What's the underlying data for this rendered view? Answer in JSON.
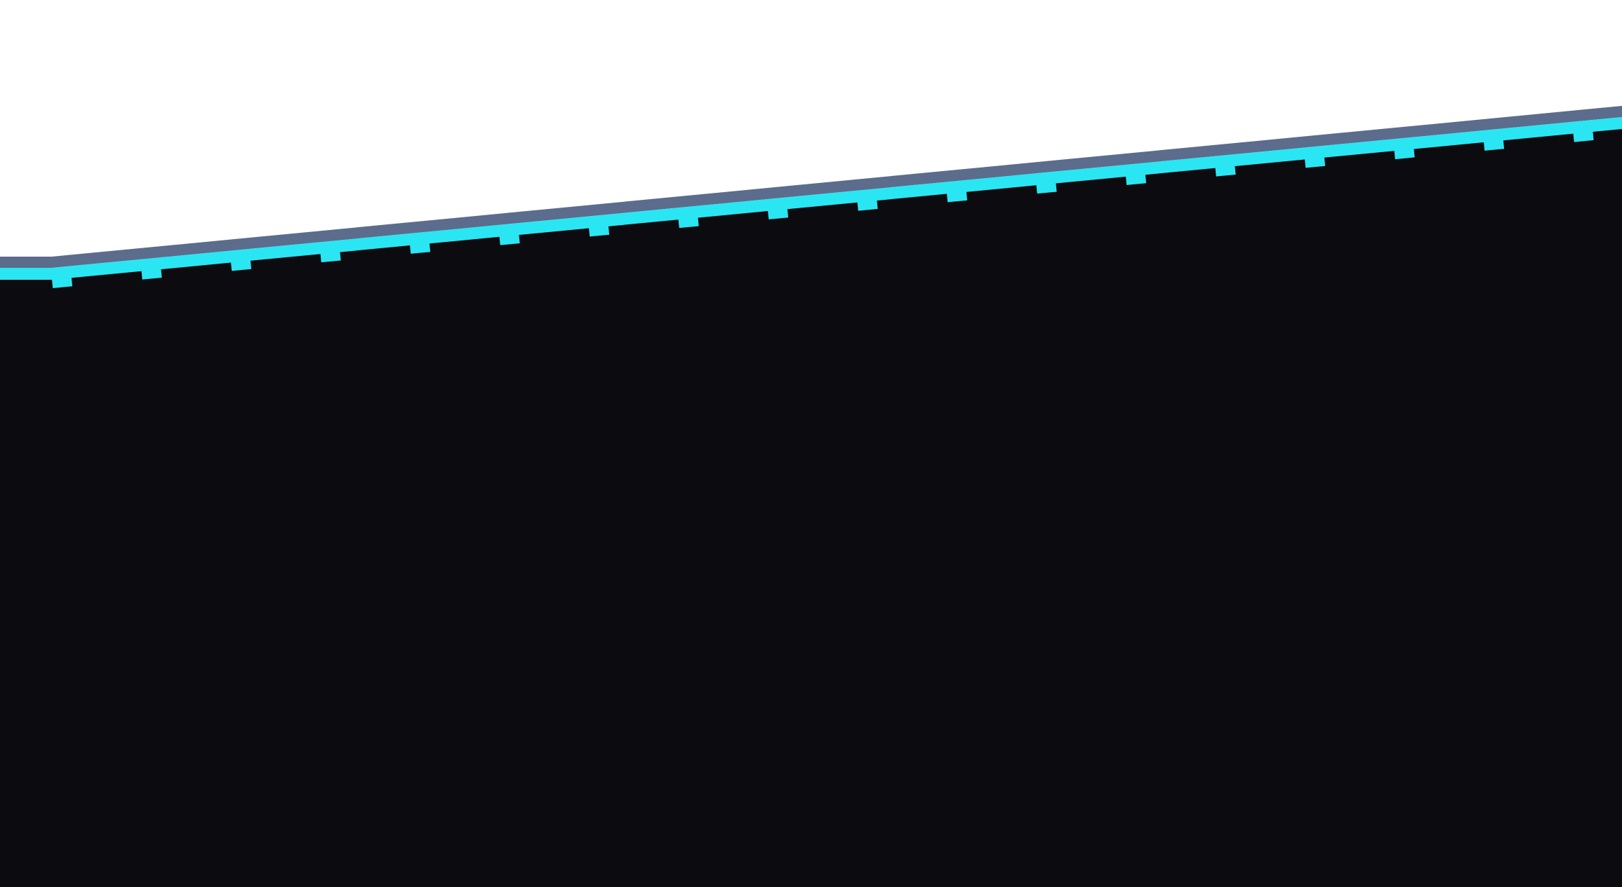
{
  "colors": {
    "sky": "#ffffff",
    "ground": "#0c0b0f",
    "edge_stripe": "#5c6c8c",
    "accent": "#2ae6f2"
  },
  "scene": {
    "elements": [
      "sky-area",
      "slope-edge-stripe",
      "slope-accent-line",
      "tick-marks",
      "dark-ground"
    ]
  }
}
